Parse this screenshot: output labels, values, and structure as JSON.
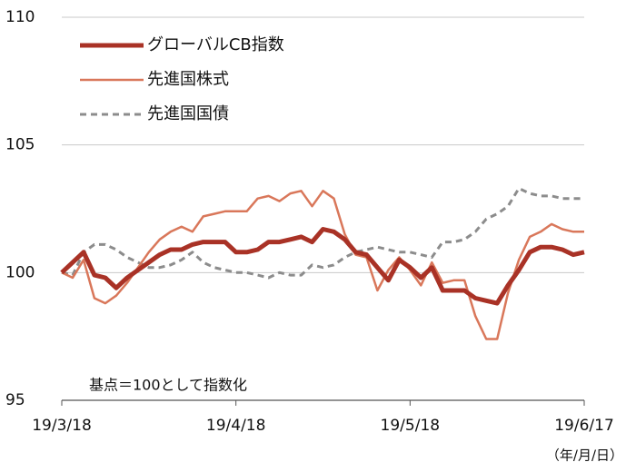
{
  "chart_data": {
    "type": "line",
    "categories": [
      "19/3/18",
      null,
      null,
      null,
      null,
      null,
      null,
      null,
      null,
      null,
      null,
      null,
      null,
      null,
      null,
      null,
      "19/4/18",
      null,
      null,
      null,
      null,
      null,
      null,
      null,
      null,
      null,
      null,
      null,
      null,
      null,
      null,
      null,
      "19/5/18",
      null,
      null,
      null,
      null,
      null,
      null,
      null,
      null,
      null,
      null,
      null,
      null,
      null,
      null,
      null,
      "19/6/17"
    ],
    "series": [
      {
        "name": "グローバルCB指数",
        "color": "#a93226",
        "width": 5,
        "dash": null,
        "values": [
          100,
          100.4,
          100.8,
          99.9,
          99.8,
          99.4,
          99.8,
          100.1,
          100.4,
          100.7,
          100.9,
          100.9,
          101.1,
          101.2,
          101.2,
          101.2,
          100.8,
          100.8,
          100.9,
          101.2,
          101.2,
          101.3,
          101.4,
          101.2,
          101.7,
          101.6,
          101.3,
          100.8,
          100.7,
          100.2,
          99.7,
          100.5,
          100.2,
          99.8,
          100.2,
          99.3,
          99.3,
          99.3,
          99,
          98.9,
          98.8,
          99.5,
          100.1,
          100.8,
          101,
          101,
          100.9,
          100.7,
          100.8
        ]
      },
      {
        "name": "先進国株式",
        "color": "#d9775a",
        "width": 2.5,
        "dash": null,
        "values": [
          100,
          99.8,
          100.5,
          99,
          98.8,
          99.1,
          99.6,
          100.2,
          100.8,
          101.3,
          101.6,
          101.8,
          101.6,
          102.2,
          102.3,
          102.4,
          102.4,
          102.4,
          102.9,
          103,
          102.8,
          103.1,
          103.2,
          102.6,
          103.2,
          102.9,
          101.5,
          100.7,
          100.6,
          99.3,
          100.1,
          100.6,
          100.1,
          99.5,
          100.4,
          99.6,
          99.7,
          99.7,
          98.3,
          97.4,
          97.4,
          99.2,
          100.5,
          101.4,
          101.6,
          101.9,
          101.7,
          101.6,
          101.6
        ]
      },
      {
        "name": "先進国国債",
        "color": "#8c8c8c",
        "width": 3,
        "dash": "7,5",
        "values": [
          100,
          99.9,
          100.8,
          101.1,
          101.1,
          100.9,
          100.6,
          100.4,
          100.2,
          100.2,
          100.3,
          100.5,
          100.8,
          100.4,
          100.2,
          100.1,
          100,
          100,
          99.9,
          99.8,
          100,
          99.9,
          99.9,
          100.3,
          100.2,
          100.3,
          100.6,
          100.8,
          100.9,
          101,
          100.9,
          100.8,
          100.8,
          100.7,
          100.6,
          101.2,
          101.2,
          101.3,
          101.6,
          102.1,
          102.3,
          102.6,
          103.3,
          103.1,
          103,
          103,
          102.9,
          102.9,
          102.9
        ]
      }
    ],
    "ylim": [
      95,
      110
    ],
    "yticks": [
      95,
      100,
      105,
      110
    ],
    "grid": true,
    "legend": "top-left",
    "annotations": [
      "基点＝100として指数化",
      "（年/月/日）"
    ]
  }
}
